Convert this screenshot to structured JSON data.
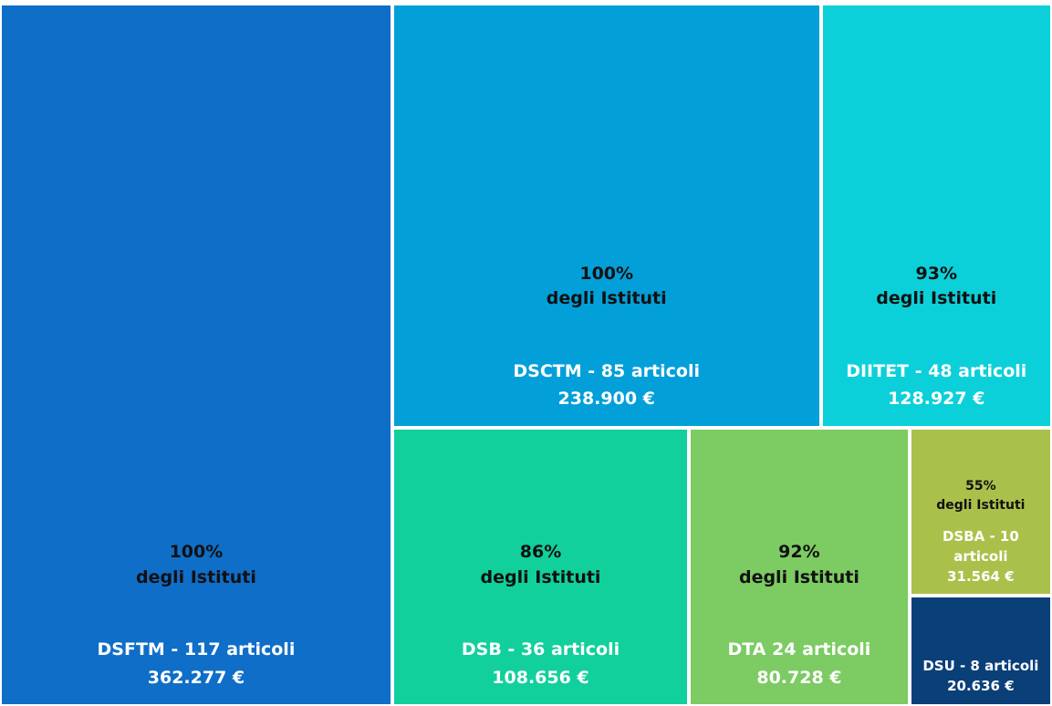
{
  "chart_data": {
    "type": "treemap",
    "categories": [
      "DSFTM - 117  articoli",
      "DSCTM - 85 articoli",
      "DIITET - 48 articoli",
      "DSB - 36 articoli",
      "DTA 24 articoli",
      "DSBA - 10 articoli",
      "DSU - 8 articoli"
    ],
    "values": [
      362277,
      238900,
      128927,
      108656,
      80728,
      31564,
      20636
    ],
    "value_labels": [
      "362.277 €",
      "238.900 €",
      "128.927 €",
      "108.656 €",
      "80.728 €",
      "31.564 €",
      "20.636 €"
    ],
    "coverage": [
      "100%",
      "100%",
      "93%",
      "86%",
      "92%",
      "55%",
      null
    ],
    "coverage_note": "degli Istituti",
    "colors": [
      "#0f6ec8",
      "#039fd9",
      "#0bd0da",
      "#11d09c",
      "#7ccb63",
      "#a9c14a",
      "#0b3f78"
    ]
  }
}
